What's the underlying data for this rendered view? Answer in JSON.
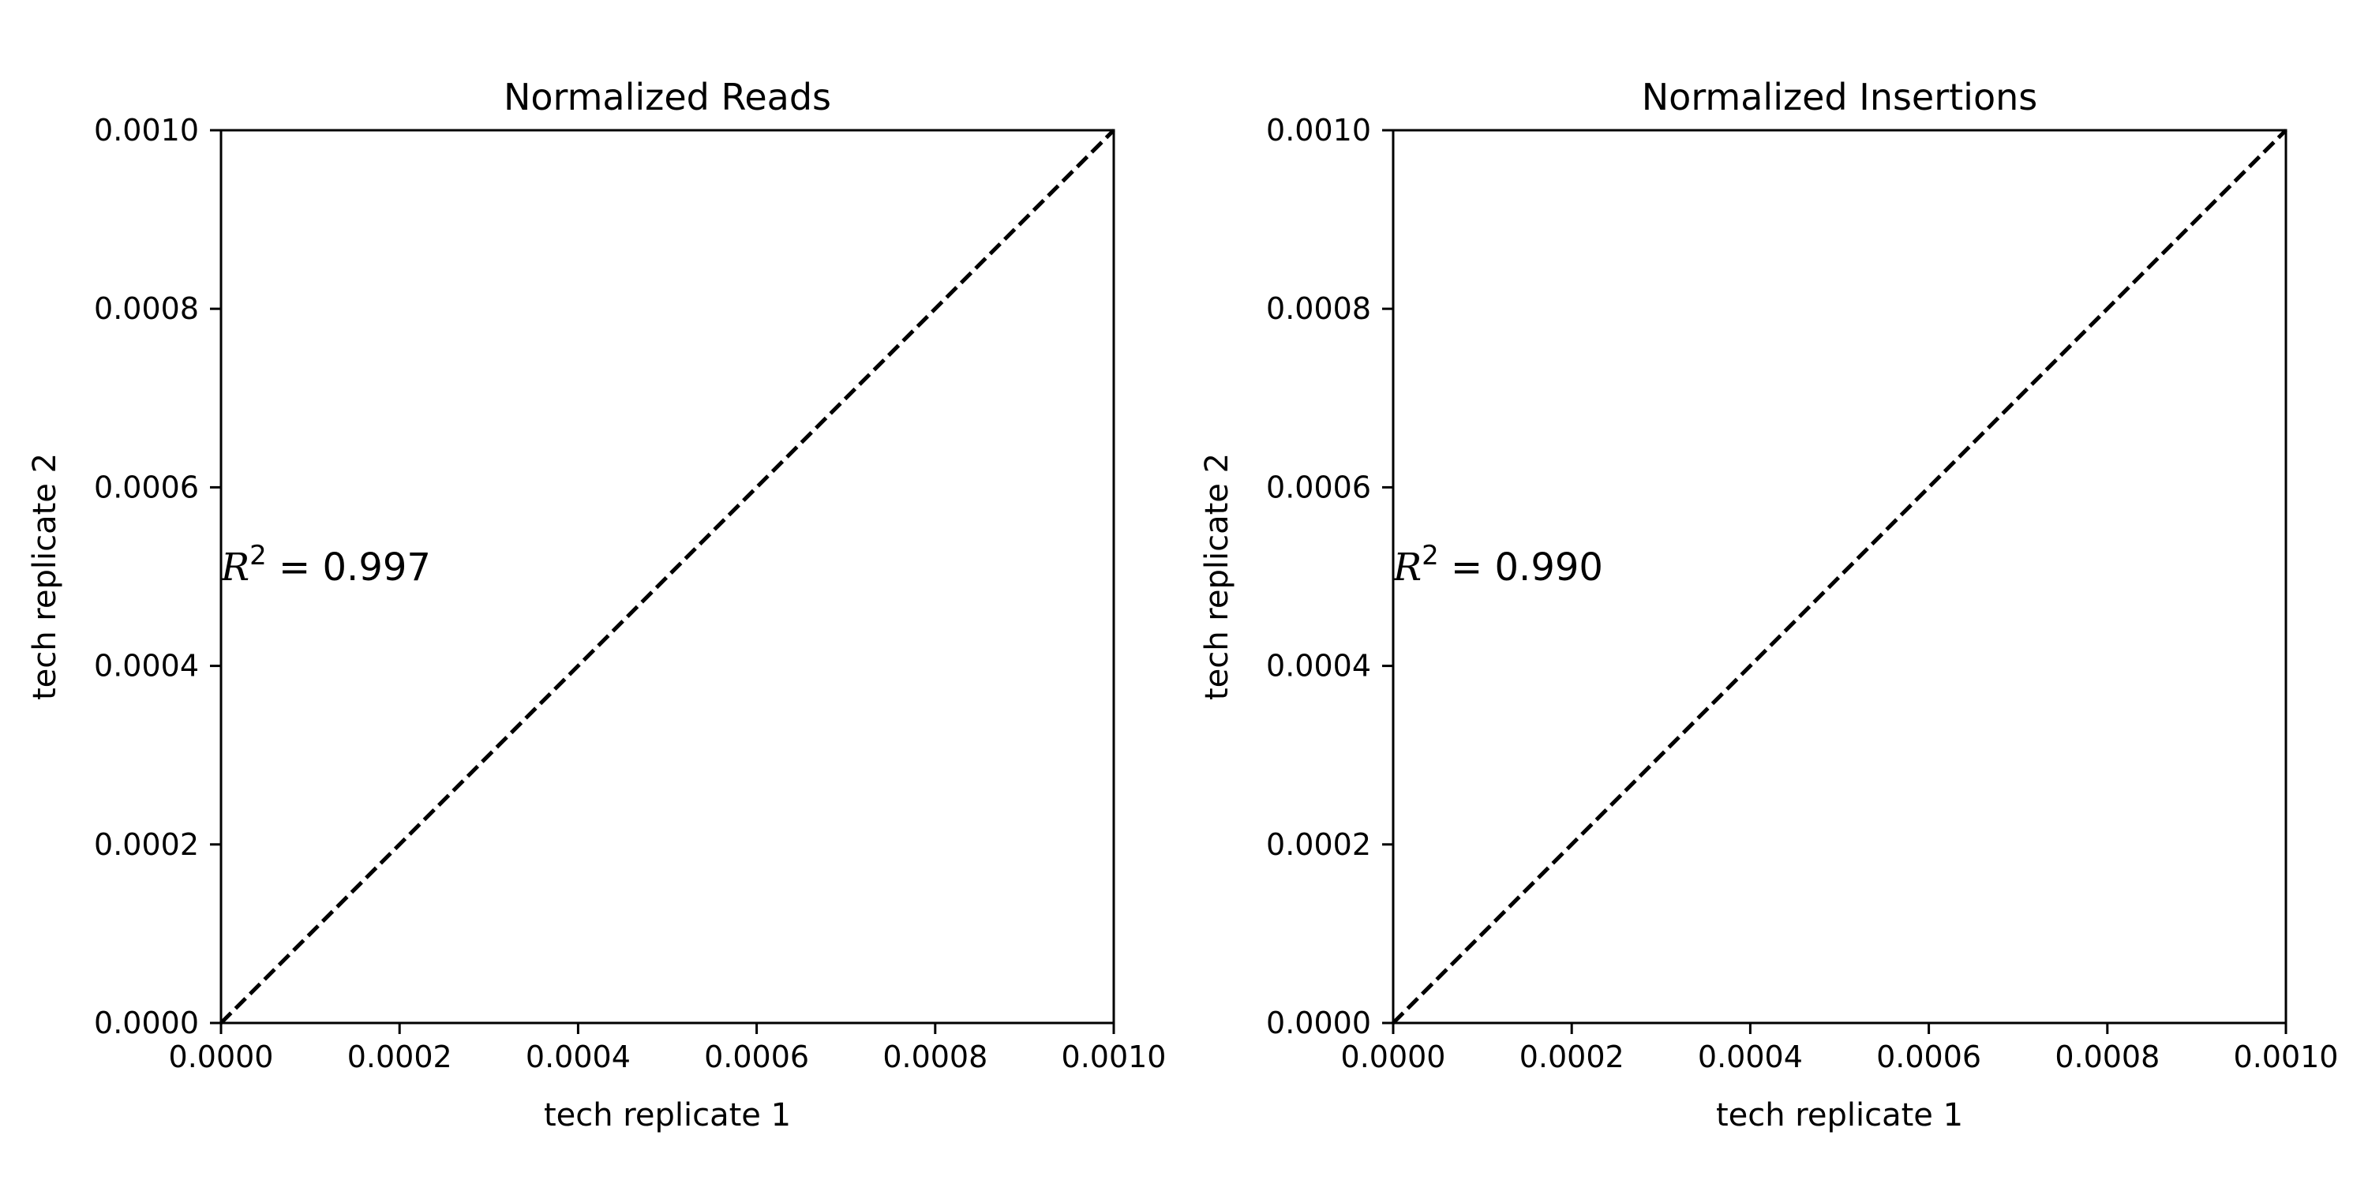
{
  "chart_data": [
    {
      "type": "line",
      "title": "Normalized Reads",
      "xlabel": "tech replicate 1",
      "ylabel": "tech replicate 2",
      "xlim": [
        0,
        0.001
      ],
      "ylim": [
        0,
        0.001
      ],
      "xticks": [
        "0.0000",
        "0.0002",
        "0.0004",
        "0.0006",
        "0.0008",
        "0.0010"
      ],
      "yticks": [
        "0.0000",
        "0.0002",
        "0.0004",
        "0.0006",
        "0.0008",
        "0.0010"
      ],
      "series": [
        {
          "style": "dashed",
          "color": "#000000",
          "x": [
            0,
            0.001
          ],
          "y": [
            0,
            0.001
          ]
        }
      ],
      "annotation": {
        "symbol": "R",
        "sup": "2",
        "text": " = 0.997",
        "x": 0.0,
        "y": 0.00051
      }
    },
    {
      "type": "line",
      "title": "Normalized Insertions",
      "xlabel": "tech replicate 1",
      "ylabel": "tech replicate 2",
      "xlim": [
        0,
        0.001
      ],
      "ylim": [
        0,
        0.001
      ],
      "xticks": [
        "0.0000",
        "0.0002",
        "0.0004",
        "0.0006",
        "0.0008",
        "0.0010"
      ],
      "yticks": [
        "0.0000",
        "0.0002",
        "0.0004",
        "0.0006",
        "0.0008",
        "0.0010"
      ],
      "series": [
        {
          "style": "dashed",
          "color": "#000000",
          "x": [
            0,
            0.001
          ],
          "y": [
            0,
            0.001
          ]
        }
      ],
      "annotation": {
        "symbol": "R",
        "sup": "2",
        "text": " = 0.990",
        "x": 0.0,
        "y": 0.00051
      }
    }
  ]
}
